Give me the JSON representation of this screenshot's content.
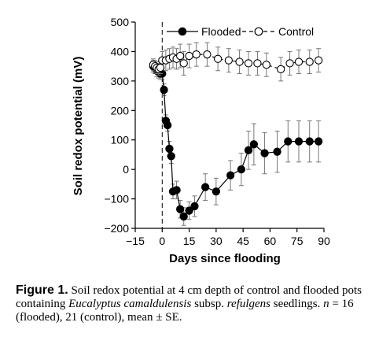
{
  "chart_data": {
    "type": "line",
    "xlabel": "Days since flooding",
    "ylabel": "Soil redox potential (mV)",
    "xlim": [
      -15,
      90
    ],
    "ylim": [
      -200,
      500
    ],
    "x_ticks": [
      -15,
      0,
      15,
      30,
      45,
      60,
      75,
      90
    ],
    "x_tick_labels": [
      "−15",
      "0",
      "15",
      "30",
      "45",
      "60",
      "75",
      "90"
    ],
    "y_ticks": [
      -200,
      -100,
      0,
      100,
      200,
      300,
      400,
      500
    ],
    "y_tick_labels": [
      "−200",
      "−100",
      "0",
      "100",
      "200",
      "300",
      "400",
      "500"
    ],
    "vline_x": 0,
    "legend_position": "top",
    "series": [
      {
        "name": "Flooded",
        "marker": "filled-circle",
        "line": "solid",
        "color": "#000000",
        "x": [
          -5,
          -4,
          -3,
          -2,
          -1,
          0,
          1,
          2,
          3,
          4,
          5,
          6,
          8,
          10,
          12,
          15,
          18,
          24,
          30,
          38,
          44,
          48,
          51,
          57,
          64,
          70,
          76,
          82,
          87
        ],
        "y": [
          350,
          345,
          335,
          330,
          325,
          325,
          270,
          165,
          150,
          70,
          45,
          -75,
          -70,
          -135,
          -160,
          -140,
          -125,
          -60,
          -75,
          -20,
          0,
          65,
          85,
          55,
          60,
          95,
          95,
          95,
          95
        ],
        "err": [
          20,
          20,
          20,
          20,
          20,
          20,
          20,
          20,
          20,
          25,
          25,
          25,
          30,
          30,
          30,
          30,
          35,
          45,
          45,
          50,
          55,
          65,
          70,
          70,
          70,
          70,
          70,
          70,
          70
        ]
      },
      {
        "name": "Control",
        "marker": "open-circle",
        "line": "dashed",
        "color": "#000000",
        "x": [
          -5,
          -4,
          -3,
          -2,
          -1,
          0,
          2,
          4,
          6,
          8,
          10,
          12,
          15,
          19,
          25,
          31,
          37,
          43,
          48,
          53,
          58,
          66,
          71,
          76,
          82,
          87
        ],
        "y": [
          355,
          350,
          345,
          340,
          345,
          370,
          370,
          375,
          380,
          375,
          385,
          360,
          385,
          390,
          390,
          375,
          370,
          365,
          360,
          360,
          355,
          340,
          360,
          365,
          365,
          370
        ],
        "err": [
          20,
          20,
          20,
          20,
          20,
          30,
          35,
          35,
          35,
          35,
          40,
          40,
          40,
          40,
          40,
          40,
          40,
          40,
          40,
          40,
          40,
          40,
          40,
          40,
          40,
          40
        ]
      }
    ]
  },
  "caption": {
    "label": "Figure 1.",
    "text_1": " Soil redox potential at 4 cm depth of control and flooded pots containing ",
    "species": "Eucalyptus camaldulensis",
    "text_2": " subsp. ",
    "subspecies": "refulgens",
    "text_3": " seedlings. ",
    "n_symbol": "n",
    "text_4": " = 16 (flooded), 21 (control), mean ± SE."
  }
}
